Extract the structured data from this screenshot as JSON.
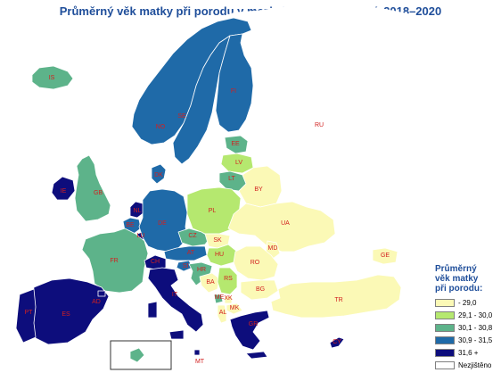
{
  "title": "Průměrný věk matky při porodu v mezinárodním srovnání, 2018–2020",
  "colors": {
    "cat1": "#fbf9b6",
    "cat2": "#b5e86f",
    "cat3": "#5db38a",
    "cat4": "#1f6aa8",
    "cat5": "#0d0d7c",
    "nodata": "#ffffff",
    "border": "#ffffff",
    "outline": "#333333",
    "label": "#d2201f"
  },
  "legend": {
    "title": [
      "Průměrný",
      "věk matky",
      "při porodu:"
    ],
    "items": [
      {
        "label": " - 29,0",
        "category": "cat1"
      },
      {
        "label": "29,1 - 30,0",
        "category": "cat2"
      },
      {
        "label": "30,1 - 30,8",
        "category": "cat3"
      },
      {
        "label": "30,9 - 31,5",
        "category": "cat4"
      },
      {
        "label": "31,6 +",
        "category": "cat5"
      },
      {
        "label": "Nezjištěno",
        "category": "nodata"
      }
    ]
  },
  "countries": [
    {
      "code": "IS",
      "category": "cat3"
    },
    {
      "code": "NO",
      "category": "cat4"
    },
    {
      "code": "SE",
      "category": "cat4"
    },
    {
      "code": "FI",
      "category": "cat4"
    },
    {
      "code": "DK",
      "category": "cat4"
    },
    {
      "code": "EE",
      "category": "cat3"
    },
    {
      "code": "LV",
      "category": "cat2"
    },
    {
      "code": "LT",
      "category": "cat3"
    },
    {
      "code": "IE",
      "category": "cat5"
    },
    {
      "code": "GB",
      "category": "cat3"
    },
    {
      "code": "NL",
      "category": "cat5"
    },
    {
      "code": "BE",
      "category": "cat4"
    },
    {
      "code": "LU",
      "category": "cat5"
    },
    {
      "code": "DE",
      "category": "cat4"
    },
    {
      "code": "PL",
      "category": "cat2"
    },
    {
      "code": "BY",
      "category": "cat1"
    },
    {
      "code": "UA",
      "category": "cat1"
    },
    {
      "code": "CZ",
      "category": "cat3"
    },
    {
      "code": "SK",
      "category": "cat1"
    },
    {
      "code": "AT",
      "category": "cat4"
    },
    {
      "code": "HU",
      "category": "cat2"
    },
    {
      "code": "MD",
      "category": "cat1"
    },
    {
      "code": "RO",
      "category": "cat1"
    },
    {
      "code": "FR",
      "category": "cat3"
    },
    {
      "code": "CH",
      "category": "cat5"
    },
    {
      "code": "IT",
      "category": "cat5"
    },
    {
      "code": "SI",
      "category": "cat4"
    },
    {
      "code": "HR",
      "category": "cat3"
    },
    {
      "code": "BA",
      "category": "cat1"
    },
    {
      "code": "RS",
      "category": "cat2"
    },
    {
      "code": "ME",
      "category": "cat3"
    },
    {
      "code": "XK",
      "category": "cat1"
    },
    {
      "code": "MK",
      "category": "cat1"
    },
    {
      "code": "AL",
      "category": "cat1"
    },
    {
      "code": "BG",
      "category": "cat1"
    },
    {
      "code": "GR",
      "category": "cat5"
    },
    {
      "code": "TR",
      "category": "cat1"
    },
    {
      "code": "GE",
      "category": "cat1"
    },
    {
      "code": "CY",
      "category": "cat5"
    },
    {
      "code": "MT",
      "category": "cat5"
    },
    {
      "code": "ES",
      "category": "cat5"
    },
    {
      "code": "PT",
      "category": "cat5"
    },
    {
      "code": "AD",
      "category": "cat5"
    },
    {
      "code": "RU",
      "category": "nodata"
    }
  ]
}
